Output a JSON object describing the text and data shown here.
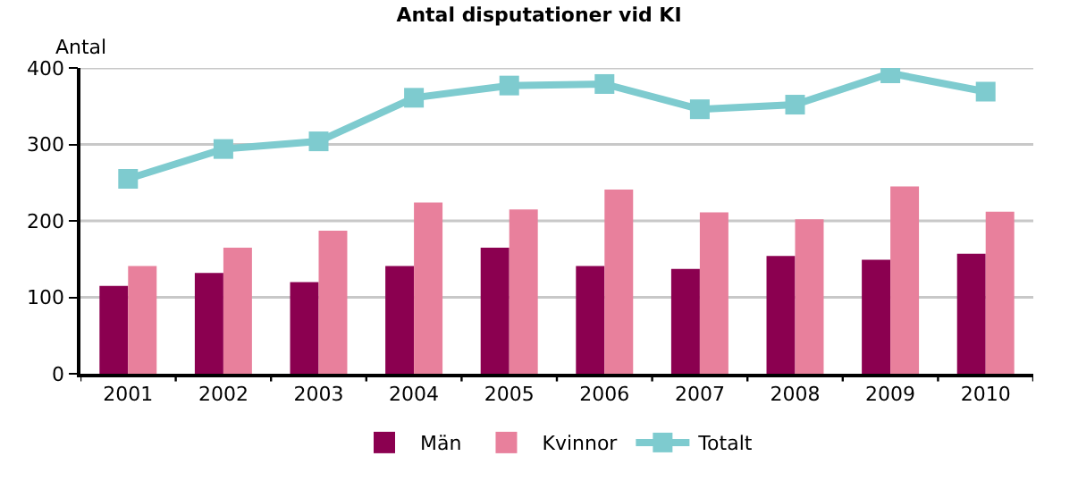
{
  "chart_data": {
    "type": "bar",
    "title": "Antal disputationer vid KI",
    "ylabel": "Antal",
    "categories": [
      "2001",
      "2002",
      "2003",
      "2004",
      "2005",
      "2006",
      "2007",
      "2008",
      "2009",
      "2010"
    ],
    "series": [
      {
        "name": "Män",
        "color": "#8b0050",
        "values": [
          115,
          132,
          120,
          141,
          165,
          141,
          137,
          154,
          149,
          157
        ]
      },
      {
        "name": "Kvinnor",
        "color": "#e8809c",
        "values": [
          141,
          165,
          187,
          224,
          215,
          241,
          211,
          202,
          245,
          212
        ]
      },
      {
        "name": "Totalt",
        "type": "line",
        "color": "#7ecbcf",
        "marker": "square",
        "values": [
          255,
          294,
          304,
          361,
          377,
          379,
          346,
          352,
          393,
          369
        ]
      }
    ],
    "ylim": [
      0,
      400
    ],
    "yticks": [
      0,
      100,
      200,
      300,
      400
    ],
    "grid": "y",
    "legend": "bottom"
  }
}
